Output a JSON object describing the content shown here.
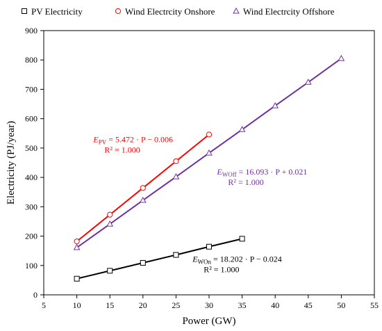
{
  "chart_data": {
    "type": "line",
    "xlabel": "Power (GW)",
    "ylabel": "Electricity (PJ/year)",
    "xlim": [
      5,
      55
    ],
    "ylim": [
      0,
      900
    ],
    "xticks": [
      "5",
      "10",
      "15",
      "20",
      "25",
      "30",
      "35",
      "40",
      "45",
      "50",
      "55"
    ],
    "yticks": [
      "0",
      "100",
      "200",
      "300",
      "400",
      "500",
      "600",
      "700",
      "800",
      "900"
    ],
    "grid": false,
    "legend_position": "top",
    "series": [
      {
        "name": "PV Electricity",
        "color": "#000000",
        "marker": "square",
        "x": [
          10,
          15,
          20,
          25,
          30,
          35
        ],
        "y": [
          55,
          82,
          109,
          136,
          164,
          191
        ]
      },
      {
        "name": "Wind Electrcity Onshore",
        "color": "#ff0000",
        "marker": "circle",
        "x": [
          10,
          15,
          20,
          25,
          30
        ],
        "y": [
          182,
          273,
          364,
          455,
          546
        ]
      },
      {
        "name": "Wind Electrcity Offshore",
        "color": "#7030a0",
        "marker": "triangle",
        "x": [
          10,
          15,
          20,
          25,
          30,
          35,
          40,
          45,
          50
        ],
        "y": [
          161,
          241,
          322,
          402,
          483,
          563,
          644,
          724,
          805
        ]
      }
    ],
    "annotations": [
      {
        "color": "#ff0000",
        "sym": "E",
        "sub": "PV",
        "rest": " = 5.472 · P − 0.006",
        "r2": "R² = 1.000",
        "at": [
          12.5,
          520
        ]
      },
      {
        "color": "#7030a0",
        "sym": "E",
        "sub": "WOff",
        "rest": " = 16.093 · P + 0.021",
        "r2": "R² = 1.000",
        "at": [
          31.2,
          410
        ]
      },
      {
        "color": "#000000",
        "sym": "E",
        "sub": "WOn",
        "rest": " = 18.202 · P − 0.024",
        "r2": "R² = 1.000",
        "at": [
          27.5,
          112
        ]
      }
    ]
  }
}
